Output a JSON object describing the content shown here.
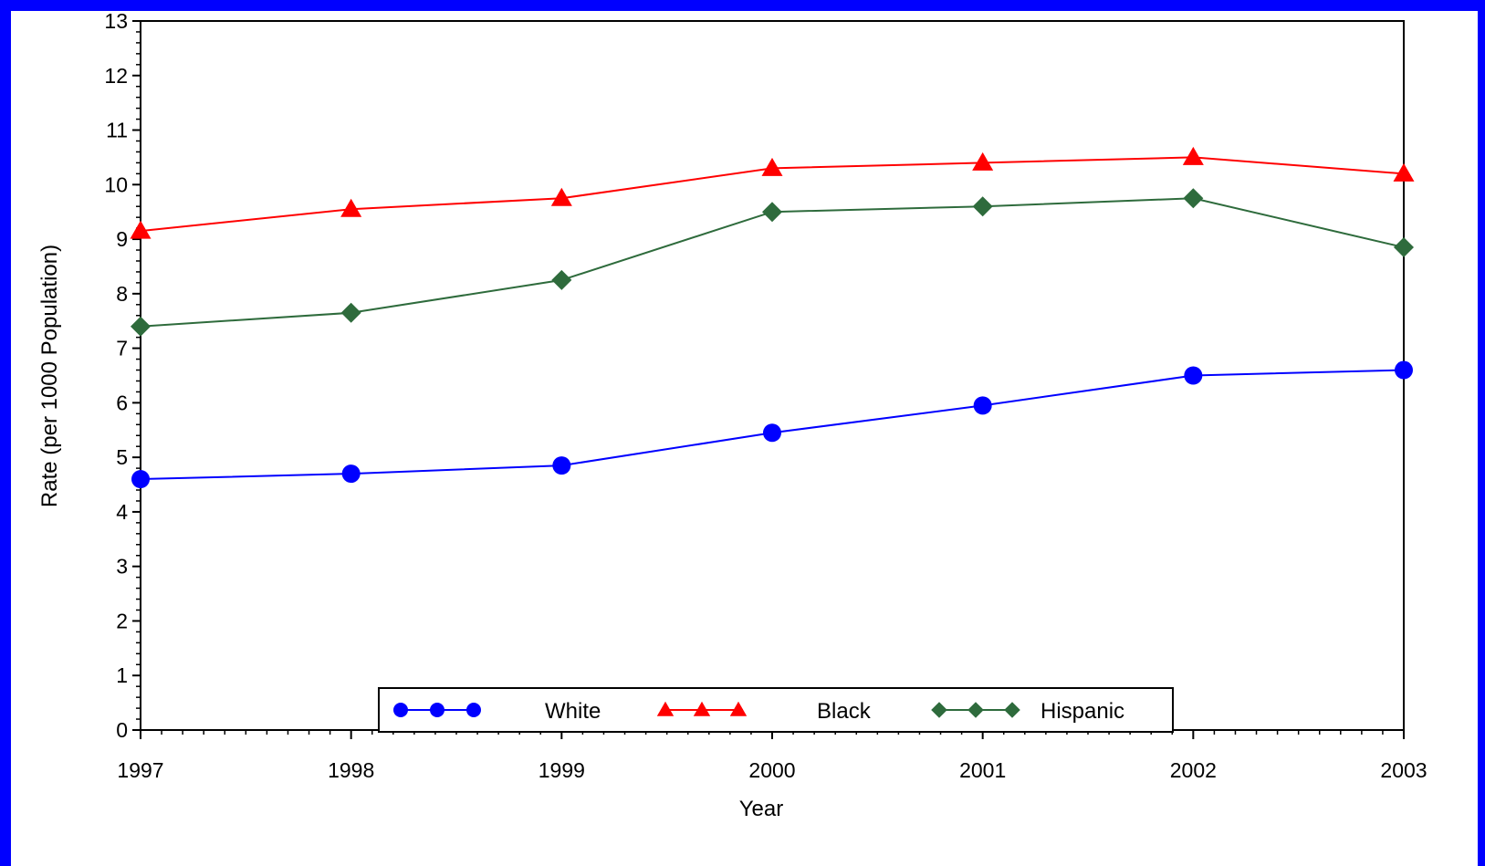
{
  "chart_data": {
    "type": "line",
    "title": "",
    "xlabel": "Year",
    "ylabel": "Rate (per 1000 Population)",
    "x": [
      "1997",
      "1998",
      "1999",
      "2000",
      "2001",
      "2002",
      "2003"
    ],
    "ylim": [
      0,
      13
    ],
    "yticks": [
      0,
      1,
      2,
      3,
      4,
      5,
      6,
      7,
      8,
      9,
      10,
      11,
      12,
      13
    ],
    "grid": false,
    "legend_position": "bottom-center",
    "series": [
      {
        "name": "White",
        "color": "#0000ff",
        "marker": "circle",
        "values": [
          4.6,
          4.7,
          4.85,
          5.45,
          5.95,
          6.5,
          6.6
        ]
      },
      {
        "name": "Black",
        "color": "#ff0000",
        "marker": "triangle",
        "values": [
          9.15,
          9.55,
          9.75,
          10.3,
          10.4,
          10.5,
          10.2
        ]
      },
      {
        "name": "Hispanic",
        "color": "#2e6b3c",
        "marker": "diamond",
        "values": [
          7.4,
          7.65,
          8.25,
          9.5,
          9.6,
          9.75,
          8.85
        ]
      }
    ]
  },
  "colors": {
    "border": "#0000ff",
    "background": "#ffffff",
    "axis": "#000000"
  }
}
